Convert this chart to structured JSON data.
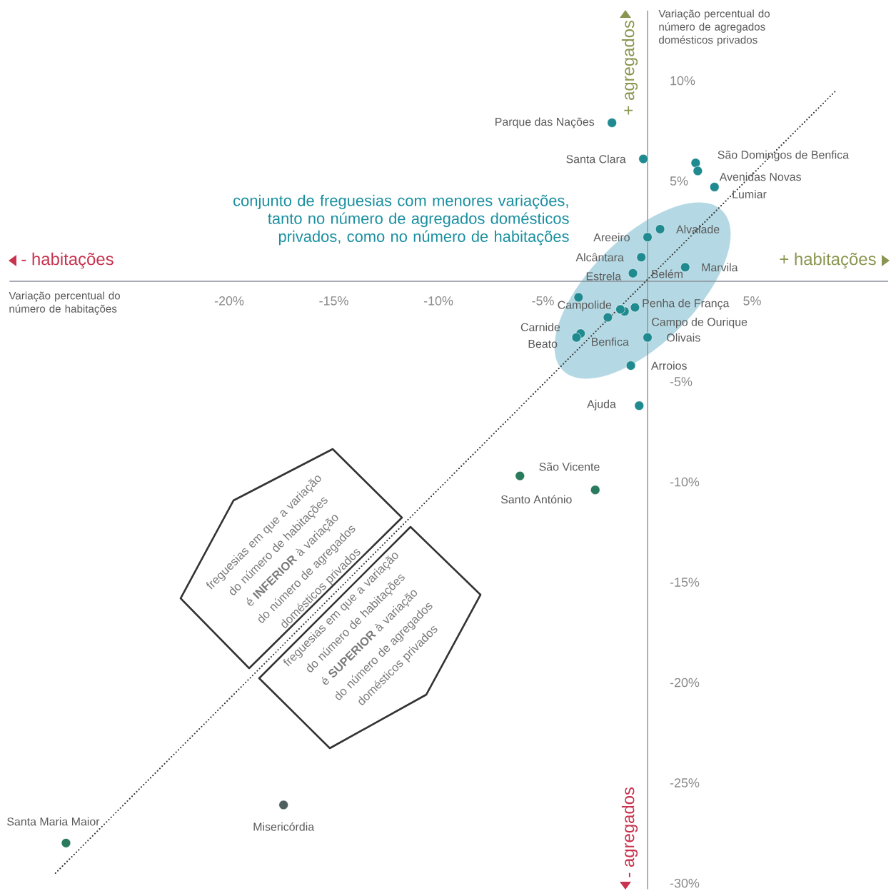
{
  "chart_data": {
    "type": "scatter",
    "xlabel": "Variação percentual do número de habitações",
    "ylabel": "Variação percentual do número de agregados domésticos privados",
    "x": [
      -1.7,
      -0.2,
      2.3,
      2.4,
      3.2,
      0.6,
      0.0,
      -0.3,
      1.8,
      -0.7,
      -0.6,
      -1.1,
      -1.3,
      -3.3,
      -1.9,
      -3.2,
      -3.4,
      0.0,
      -0.8,
      -0.4,
      -6.1,
      -2.5,
      -27.8,
      -17.4
    ],
    "series": [
      {
        "type": "scatter",
        "marker": "circle",
        "colors": [
          "#1f8a8f",
          "#1f8a8f",
          "#1f8a8f",
          "#1f8a8f",
          "#1f8a8f",
          "#1f8a8f",
          "#1f8a8f",
          "#1f8a8f",
          "#1f8a8f",
          "#1f8a8f",
          "#1f8a8f",
          "#1f8a8f",
          "#1f8a8f",
          "#1f8a8f",
          "#1f8a8f",
          "#1f8a8f",
          "#1f8a8f",
          "#1f8a8f",
          "#1f8a8f",
          "#1f8a8f",
          "#2a7a5e",
          "#2a7a5e",
          "#2a7a5e",
          "#4f5e5e"
        ],
        "values": [
          7.9,
          6.1,
          5.9,
          5.5,
          4.7,
          2.6,
          2.2,
          1.2,
          0.7,
          0.4,
          -1.3,
          -1.5,
          -1.4,
          -0.8,
          -1.8,
          -2.6,
          -2.8,
          -2.8,
          -4.2,
          -6.2,
          -9.7,
          -10.4,
          -28.0,
          -26.1
        ]
      },
      {
        "type": "line",
        "marker": "none",
        "line_style": "dotted",
        "color": "#333333",
        "x": [
          -28.3,
          9.0
        ],
        "values": [
          -29.5,
          9.5
        ]
      }
    ],
    "xlim": [
      -30.5,
      11.5
    ],
    "ylim": [
      -30.3,
      13.5
    ],
    "xticks": [
      {
        "value": -20,
        "label": "-20%"
      },
      {
        "value": -15,
        "label": "-15%"
      },
      {
        "value": -10,
        "label": "-10%"
      },
      {
        "value": -5,
        "label": "-5%"
      },
      {
        "value": 5,
        "label": "5%"
      }
    ],
    "yticks": [
      {
        "value": 10,
        "label": "10%"
      },
      {
        "value": 5,
        "label": "5%"
      },
      {
        "value": -5,
        "label": "-5%"
      },
      {
        "value": -10,
        "label": "-10%"
      },
      {
        "value": -15,
        "label": "-15%"
      },
      {
        "value": -20,
        "label": "-20%"
      },
      {
        "value": -25,
        "label": "-25%"
      },
      {
        "value": -30,
        "label": "-30%"
      }
    ],
    "annotations": [
      "conjunto de freguesias com menores variações, tanto no número de agregados domésticos privados, como no número de habitações",
      "freguesias em que a variação do número de habitações é **INFERIOR** à variação do número de agregados domésticos privados",
      "freguesias em que a variação do número de habitações é **SUPERIOR** à variação do número de agregados domésticos privados",
      "- habitações",
      "+ habitações",
      "+ agregados",
      "- agregados",
      {
        "text": "Parque das Nações",
        "x": -1.7,
        "y": 7.9
      },
      {
        "text": "Santa Clara",
        "x": -0.2,
        "y": 6.1
      },
      {
        "text": "São Domingos de Benfica",
        "x": 2.3,
        "y": 5.9
      },
      {
        "text": "Avenidas Novas",
        "x": 2.4,
        "y": 5.5
      },
      {
        "text": "Lumiar",
        "x": 3.2,
        "y": 4.7
      },
      {
        "text": "Alvalade",
        "x": 0.6,
        "y": 2.6
      },
      {
        "text": "Areeiro",
        "x": 0.0,
        "y": 2.2
      },
      {
        "text": "Alcântara",
        "x": -0.3,
        "y": 1.2
      },
      {
        "text": "Marvila",
        "x": 1.8,
        "y": 0.7
      },
      {
        "text": "Estrela",
        "x": -0.7,
        "y": 0.4
      },
      {
        "text": "Belém",
        "x": -0.6,
        "y": -1.3
      },
      {
        "text": "Penha de França",
        "x": -1.1,
        "y": -1.5
      },
      {
        "text": "Campo de Ourique",
        "x": -1.3,
        "y": -1.4
      },
      {
        "text": "Campolide",
        "x": -3.3,
        "y": -0.8
      },
      {
        "text": "Benfica",
        "x": -1.9,
        "y": -1.8
      },
      {
        "text": "Carnide",
        "x": -3.2,
        "y": -2.6
      },
      {
        "text": "Beato",
        "x": -3.4,
        "y": -2.8
      },
      {
        "text": "Olivais",
        "x": 0.0,
        "y": -2.8
      },
      {
        "text": "Arroios",
        "x": -0.8,
        "y": -4.2
      },
      {
        "text": "Ajuda",
        "x": -0.4,
        "y": -6.2
      },
      {
        "text": "São Vicente",
        "x": -6.1,
        "y": -9.7
      },
      {
        "text": "Santo António",
        "x": -2.5,
        "y": -10.4
      },
      {
        "text": "Santa Maria Maior",
        "x": -27.8,
        "y": -28.0
      },
      {
        "text": "Misericórdia",
        "x": -17.4,
        "y": -26.1
      }
    ]
  }
}
